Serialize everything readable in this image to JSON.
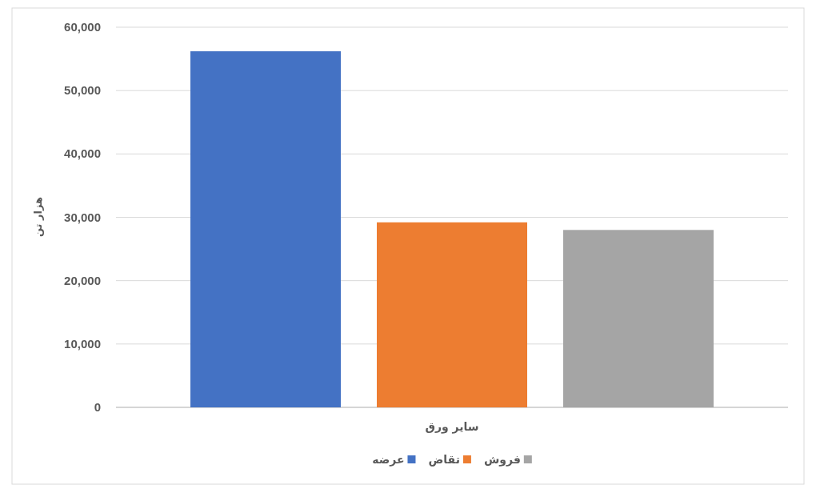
{
  "chart_data": {
    "type": "bar",
    "ylabel": "هزار تن",
    "categories": [
      "سایر ورق"
    ],
    "series": [
      {
        "name": "عرضه",
        "color": "#4472c4",
        "values": [
          56200
        ]
      },
      {
        "name": "تقاض",
        "color": "#ed7d31",
        "values": [
          29200
        ]
      },
      {
        "name": "فروش",
        "color": "#a5a5a5",
        "values": [
          28000
        ]
      }
    ],
    "ylim": [
      0,
      60000
    ],
    "yticks": [
      {
        "value": 0,
        "label": "0"
      },
      {
        "value": 10000,
        "label": "10,000"
      },
      {
        "value": 20000,
        "label": "20,000"
      },
      {
        "value": 30000,
        "label": "30,000"
      },
      {
        "value": 40000,
        "label": "40,000"
      },
      {
        "value": 50000,
        "label": "50,000"
      },
      {
        "value": 60000,
        "label": "60,000"
      }
    ],
    "grid": "y",
    "legend": "bottom"
  }
}
